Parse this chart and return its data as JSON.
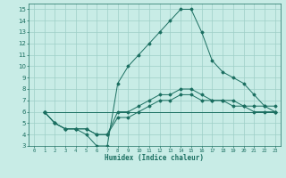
{
  "title": "",
  "xlabel": "Humidex (Indice chaleur)",
  "ylabel": "",
  "bg_color": "#c8ece6",
  "line_color": "#1a6e60",
  "grid_color": "#9ecfc7",
  "xlim": [
    -0.5,
    23.5
  ],
  "ylim": [
    3,
    15.5
  ],
  "xticks": [
    0,
    1,
    2,
    3,
    4,
    5,
    6,
    7,
    8,
    9,
    10,
    11,
    12,
    13,
    14,
    15,
    16,
    17,
    18,
    19,
    20,
    21,
    22,
    23
  ],
  "yticks": [
    3,
    4,
    5,
    6,
    7,
    8,
    9,
    10,
    11,
    12,
    13,
    14,
    15
  ],
  "lines": [
    {
      "x": [
        1,
        2,
        3,
        4,
        5,
        6,
        7,
        8,
        9,
        10,
        11,
        12,
        13,
        14,
        15,
        16,
        17,
        18,
        19,
        20,
        21,
        22,
        23
      ],
      "y": [
        6,
        5,
        4.5,
        4.5,
        4,
        3,
        3,
        8.5,
        10,
        11,
        12,
        13,
        14,
        15,
        15,
        13,
        10.5,
        9.5,
        9,
        8.5,
        7.5,
        6.5,
        6
      ]
    },
    {
      "x": [
        1,
        2,
        3,
        4,
        5,
        6,
        7,
        8,
        9,
        10,
        11,
        12,
        13,
        14,
        15,
        16,
        17,
        18,
        19,
        20,
        21,
        22,
        23
      ],
      "y": [
        6,
        5,
        4.5,
        4.5,
        4.5,
        4,
        4,
        6,
        6,
        6.5,
        7,
        7.5,
        7.5,
        8,
        8,
        7.5,
        7,
        7,
        7,
        6.5,
        6.5,
        6.5,
        6.5
      ]
    },
    {
      "x": [
        1,
        2,
        3,
        4,
        5,
        6,
        7,
        8,
        9,
        10,
        11,
        12,
        13,
        14,
        15,
        16,
        17,
        18,
        19,
        20,
        21,
        22,
        23
      ],
      "y": [
        6,
        5,
        4.5,
        4.5,
        4.5,
        4,
        4,
        5.5,
        5.5,
        6,
        6.5,
        7,
        7,
        7.5,
        7.5,
        7,
        7,
        7,
        6.5,
        6.5,
        6,
        6,
        6
      ]
    },
    {
      "x": [
        1,
        23
      ],
      "y": [
        6,
        6
      ]
    }
  ]
}
